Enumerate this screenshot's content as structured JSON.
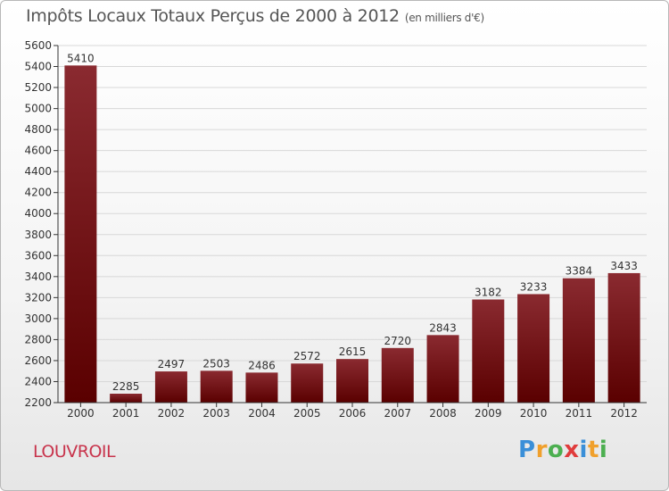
{
  "header": {
    "title": "Impôts Locaux Totaux Perçus de 2000 à 2012",
    "subtitle": "(en milliers d'€)"
  },
  "footer": {
    "city": "LOUVROIL",
    "logo_text": "Proxiti",
    "logo_letters": [
      "P",
      "r",
      "o",
      "x",
      "i",
      "t",
      "i"
    ],
    "logo_colors": [
      "#3a8fd8",
      "#f0a02c",
      "#4caf50",
      "#e03c3c",
      "#3a8fd8",
      "#f0a02c",
      "#4caf50"
    ]
  },
  "colors": {
    "bar_top": "#8a2a30",
    "bar_bottom": "#5a0000",
    "axis": "#333333",
    "grid": "#d8d8d8",
    "text": "#333333"
  },
  "chart_data": {
    "type": "bar",
    "title": "Impôts Locaux Totaux Perçus de 2000 à 2012",
    "xlabel": "",
    "ylabel": "",
    "categories": [
      "2000",
      "2001",
      "2002",
      "2003",
      "2004",
      "2005",
      "2006",
      "2007",
      "2008",
      "2009",
      "2010",
      "2011",
      "2012"
    ],
    "values": [
      5410,
      2285,
      2497,
      2503,
      2486,
      2572,
      2615,
      2720,
      2843,
      3182,
      3233,
      3384,
      3433
    ],
    "ylim": [
      2200,
      5600
    ],
    "yticks": [
      2200,
      2400,
      2600,
      2800,
      3000,
      3200,
      3400,
      3600,
      3800,
      4000,
      4200,
      4400,
      4600,
      4800,
      5000,
      5200,
      5400,
      5600
    ],
    "grid": true
  }
}
